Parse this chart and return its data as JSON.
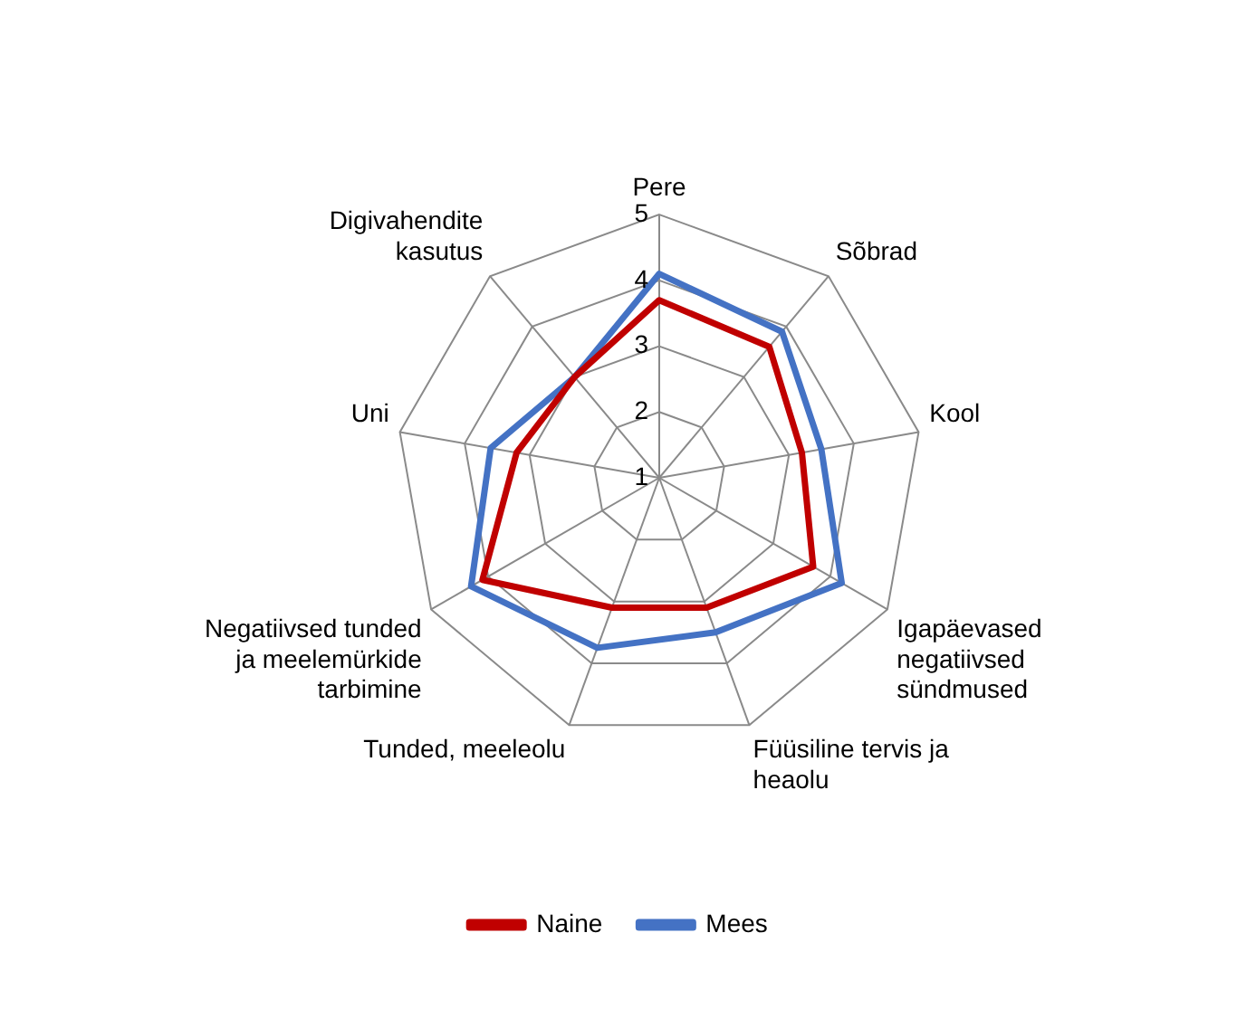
{
  "chart_data": {
    "type": "radar",
    "categories": [
      "Pere",
      "Sõbrad",
      "Kool",
      "Igapäevased negatiivsed sündmused",
      "Füüsiline tervis ja heaolu",
      "Tunded, meeleolu",
      "Negatiivsed tunded ja meelemürkide tarbimine",
      "Uni",
      "Digivahendite kasutus"
    ],
    "series": [
      {
        "name": "Naine",
        "color": "#c00000",
        "values": [
          3.7,
          3.6,
          3.2,
          3.7,
          3.1,
          3.1,
          4.1,
          3.2,
          3.0
        ]
      },
      {
        "name": "Mees",
        "color": "#4472c4",
        "values": [
          4.1,
          3.9,
          3.5,
          4.2,
          3.5,
          3.75,
          4.3,
          3.6,
          3.0
        ]
      }
    ],
    "ylim": [
      1,
      5
    ],
    "yticks": [
      1,
      2,
      3,
      4,
      5
    ],
    "grid": true,
    "legend": "bottom",
    "marker": "none",
    "line_style": "solid"
  }
}
